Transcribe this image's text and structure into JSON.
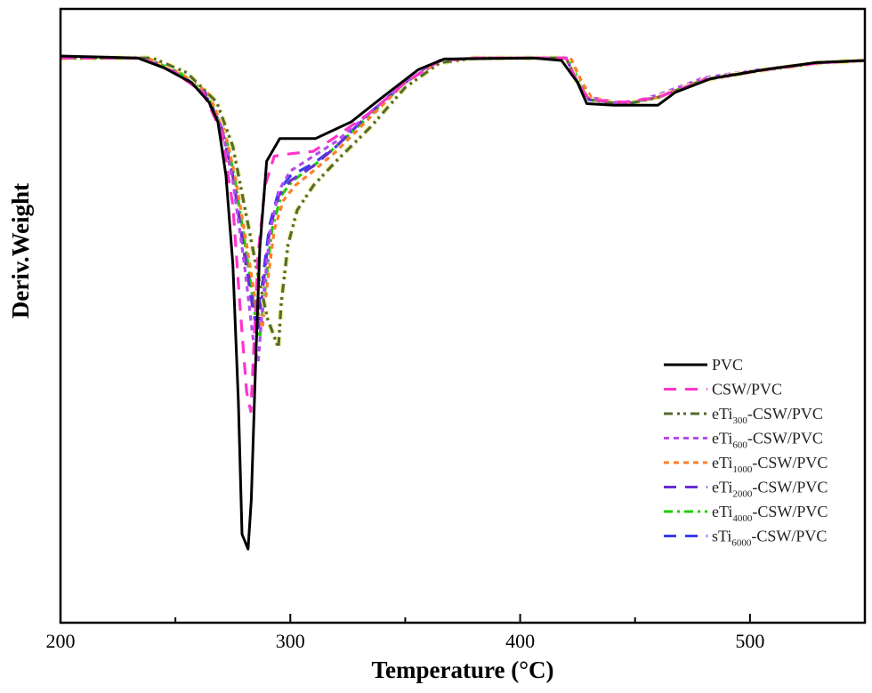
{
  "chart_data": {
    "type": "line",
    "title": "",
    "xlabel": "Temperature (°C)",
    "ylabel": "Deriv.Weight",
    "xlim": [
      200,
      550
    ],
    "ylim": [
      -115,
      10
    ],
    "xticks": [
      200,
      300,
      400,
      500
    ],
    "xtick_labels": [
      "200",
      "300",
      "400",
      "500"
    ],
    "y_tick_labels_shown": false,
    "grid": false,
    "legend_position": "bottom-right",
    "series": [
      {
        "name": "PVC",
        "label": {
          "pre": "PVC",
          "sub": "",
          "post": ""
        },
        "color": "#000000",
        "dash": "solid",
        "points": [
          [
            200,
            0.4
          ],
          [
            233.6,
            0
          ],
          [
            245,
            -2
          ],
          [
            257,
            -5
          ],
          [
            264.6,
            -9
          ],
          [
            268.5,
            -13
          ],
          [
            272,
            -24
          ],
          [
            275,
            -42
          ],
          [
            277.4,
            -70
          ],
          [
            279,
            -97
          ],
          [
            281.6,
            -100
          ],
          [
            283,
            -90
          ],
          [
            285,
            -61
          ],
          [
            286.7,
            -39
          ],
          [
            289.7,
            -21
          ],
          [
            295.4,
            -16.4
          ],
          [
            311,
            -16.4
          ],
          [
            326.5,
            -13
          ],
          [
            340,
            -8
          ],
          [
            355.6,
            -2.4
          ],
          [
            367,
            -0.2
          ],
          [
            406,
            0
          ],
          [
            418,
            -0.5
          ],
          [
            425,
            -5
          ],
          [
            429,
            -9.3
          ],
          [
            440.6,
            -9.6
          ],
          [
            460,
            -9.6
          ],
          [
            467.5,
            -7
          ],
          [
            483,
            -4.2
          ],
          [
            506,
            -2.4
          ],
          [
            529,
            -0.9
          ],
          [
            550,
            -0.5
          ]
        ]
      },
      {
        "name": "CSW/PVC",
        "label": {
          "pre": "CSW/PVC",
          "sub": "",
          "post": ""
        },
        "color": "#ff33cc",
        "dash": "dash",
        "points": [
          [
            200,
            0
          ],
          [
            235,
            0
          ],
          [
            250,
            -3
          ],
          [
            262,
            -7
          ],
          [
            270,
            -15
          ],
          [
            275,
            -30
          ],
          [
            278,
            -50
          ],
          [
            281,
            -68
          ],
          [
            282.8,
            -72
          ],
          [
            284,
            -60
          ],
          [
            286,
            -40
          ],
          [
            289,
            -26
          ],
          [
            293,
            -20
          ],
          [
            300,
            -19.5
          ],
          [
            310,
            -19
          ],
          [
            320,
            -16
          ],
          [
            335,
            -11
          ],
          [
            350,
            -5
          ],
          [
            365,
            -0.5
          ],
          [
            380,
            0
          ],
          [
            420,
            0
          ],
          [
            425,
            -5
          ],
          [
            430,
            -8.5
          ],
          [
            445,
            -9
          ],
          [
            460,
            -8
          ],
          [
            480,
            -4.5
          ],
          [
            505,
            -2.5
          ],
          [
            530,
            -1
          ],
          [
            550,
            -0.5
          ]
        ]
      },
      {
        "name": "eTi300-CSW/PVC",
        "label": {
          "pre": "eTi",
          "sub": "300",
          "post": "-CSW/PVC"
        },
        "color": "#556b2f",
        "dash": "dashdotdot",
        "points": [
          [
            200,
            0
          ],
          [
            240,
            0
          ],
          [
            255,
            -3
          ],
          [
            268,
            -9
          ],
          [
            275,
            -18
          ],
          [
            280,
            -30
          ],
          [
            285,
            -42
          ],
          [
            290,
            -53
          ],
          [
            294.8,
            -59
          ],
          [
            296,
            -50
          ],
          [
            299,
            -38
          ],
          [
            303,
            -31
          ],
          [
            310,
            -26
          ],
          [
            320,
            -21
          ],
          [
            335,
            -14
          ],
          [
            350,
            -6
          ],
          [
            365,
            -1
          ],
          [
            380,
            0
          ],
          [
            420,
            0
          ],
          [
            425,
            -5
          ],
          [
            430,
            -8.5
          ],
          [
            445,
            -9.5
          ],
          [
            460,
            -8
          ],
          [
            480,
            -4.5
          ],
          [
            505,
            -2.5
          ],
          [
            530,
            -1
          ],
          [
            550,
            -0.5
          ]
        ]
      },
      {
        "name": "eTi600-CSW/PVC",
        "label": {
          "pre": "eTi",
          "sub": "600",
          "post": "-CSW/PVC"
        },
        "color": "#b44cf0",
        "dash": "short",
        "points": [
          [
            200,
            0
          ],
          [
            235,
            0
          ],
          [
            250,
            -3
          ],
          [
            262,
            -7
          ],
          [
            270,
            -14
          ],
          [
            275,
            -25
          ],
          [
            280,
            -42
          ],
          [
            284,
            -58
          ],
          [
            286,
            -62
          ],
          [
            288,
            -50
          ],
          [
            291,
            -36
          ],
          [
            295,
            -27
          ],
          [
            300,
            -23
          ],
          [
            310,
            -20
          ],
          [
            320,
            -17
          ],
          [
            335,
            -11
          ],
          [
            350,
            -5
          ],
          [
            365,
            -0.5
          ],
          [
            380,
            0
          ],
          [
            420,
            0
          ],
          [
            425,
            -5
          ],
          [
            430,
            -8
          ],
          [
            445,
            -9.5
          ],
          [
            460,
            -7.5
          ],
          [
            480,
            -4
          ],
          [
            505,
            -2.3
          ],
          [
            530,
            -1
          ],
          [
            550,
            -0.5
          ]
        ]
      },
      {
        "name": "eTi1000-CSW/PVC",
        "label": {
          "pre": "eTi",
          "sub": "1000",
          "post": "-CSW/PVC"
        },
        "color": "#ff7f27",
        "dash": "short",
        "points": [
          [
            200,
            0
          ],
          [
            238,
            0
          ],
          [
            252,
            -3
          ],
          [
            264,
            -7
          ],
          [
            271,
            -14
          ],
          [
            276,
            -24
          ],
          [
            281,
            -38
          ],
          [
            285,
            -50
          ],
          [
            287.8,
            -55
          ],
          [
            290,
            -46
          ],
          [
            293,
            -35
          ],
          [
            297,
            -29
          ],
          [
            302,
            -26
          ],
          [
            310,
            -23
          ],
          [
            320,
            -19
          ],
          [
            335,
            -12
          ],
          [
            350,
            -5
          ],
          [
            365,
            -0.7
          ],
          [
            380,
            0
          ],
          [
            422,
            0
          ],
          [
            427,
            -5
          ],
          [
            431,
            -8
          ],
          [
            445,
            -9.3
          ],
          [
            460,
            -8
          ],
          [
            480,
            -4.3
          ],
          [
            505,
            -2.4
          ],
          [
            530,
            -1
          ],
          [
            550,
            -0.5
          ]
        ]
      },
      {
        "name": "eTi2000-CSW/PVC",
        "label": {
          "pre": "eTi",
          "sub": "2000",
          "post": "-CSW/PVC"
        },
        "color": "#6a2cd6",
        "dash": "dash",
        "points": [
          [
            200,
            0
          ],
          [
            236,
            0
          ],
          [
            251,
            -3
          ],
          [
            263,
            -7
          ],
          [
            270,
            -14
          ],
          [
            275,
            -24
          ],
          [
            280,
            -40
          ],
          [
            284,
            -52
          ],
          [
            286,
            -56
          ],
          [
            288,
            -47
          ],
          [
            291,
            -35
          ],
          [
            295,
            -28
          ],
          [
            300,
            -25
          ],
          [
            310,
            -22
          ],
          [
            320,
            -18
          ],
          [
            335,
            -11
          ],
          [
            350,
            -5
          ],
          [
            365,
            -0.5
          ],
          [
            380,
            0
          ],
          [
            420,
            0
          ],
          [
            425,
            -5
          ],
          [
            430,
            -8.5
          ],
          [
            445,
            -9.3
          ],
          [
            460,
            -8
          ],
          [
            480,
            -4.3
          ],
          [
            505,
            -2.4
          ],
          [
            530,
            -1
          ],
          [
            550,
            -0.5
          ]
        ]
      },
      {
        "name": "eTi4000-CSW/PVC",
        "label": {
          "pre": "eTi",
          "sub": "4000",
          "post": "-CSW/PVC"
        },
        "color": "#22cc00",
        "dash": "dashdot",
        "points": [
          [
            200,
            0
          ],
          [
            237,
            0
          ],
          [
            252,
            -3
          ],
          [
            263,
            -7
          ],
          [
            271,
            -14
          ],
          [
            276,
            -25
          ],
          [
            281,
            -40
          ],
          [
            284.5,
            -52
          ],
          [
            286.7,
            -57
          ],
          [
            289,
            -47
          ],
          [
            292,
            -35
          ],
          [
            296,
            -28
          ],
          [
            301,
            -25
          ],
          [
            310,
            -22
          ],
          [
            320,
            -18
          ],
          [
            335,
            -11.5
          ],
          [
            350,
            -5
          ],
          [
            365,
            -0.6
          ],
          [
            380,
            0
          ],
          [
            421,
            0
          ],
          [
            426,
            -5
          ],
          [
            430,
            -8.5
          ],
          [
            445,
            -9.2
          ],
          [
            460,
            -8
          ],
          [
            480,
            -4.3
          ],
          [
            505,
            -2.4
          ],
          [
            530,
            -1
          ],
          [
            550,
            -0.5
          ]
        ]
      },
      {
        "name": "sTi6000-CSW/PVC",
        "label": {
          "pre": "sTi",
          "sub": "6000",
          "post": "-CSW/PVC"
        },
        "color": "#3b3bf0",
        "dash": "dash",
        "points": [
          [
            200,
            0
          ],
          [
            236,
            0
          ],
          [
            251,
            -3
          ],
          [
            263,
            -7
          ],
          [
            270,
            -14
          ],
          [
            275,
            -24
          ],
          [
            280,
            -39
          ],
          [
            284,
            -50
          ],
          [
            286,
            -54
          ],
          [
            288,
            -45
          ],
          [
            291,
            -34
          ],
          [
            295,
            -27
          ],
          [
            300,
            -24
          ],
          [
            310,
            -21.5
          ],
          [
            320,
            -18
          ],
          [
            335,
            -11
          ],
          [
            350,
            -5
          ],
          [
            365,
            -0.5
          ],
          [
            380,
            0
          ],
          [
            420,
            0
          ],
          [
            425,
            -5
          ],
          [
            430,
            -8.5
          ],
          [
            445,
            -9.3
          ],
          [
            460,
            -8
          ],
          [
            480,
            -4.3
          ],
          [
            505,
            -2.4
          ],
          [
            530,
            -1
          ],
          [
            550,
            -0.5
          ]
        ]
      }
    ]
  }
}
